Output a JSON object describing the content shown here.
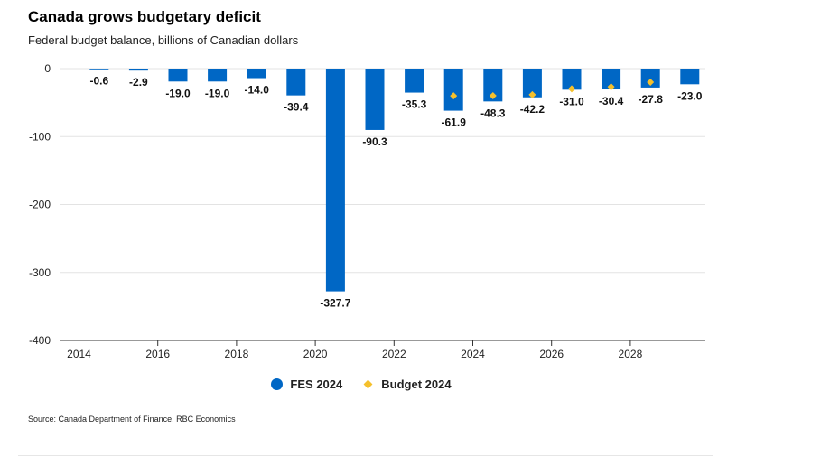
{
  "chart_data": {
    "type": "bar",
    "title": "Canada grows budgetary deficit",
    "subtitle": "Federal budget balance, billions of Canadian dollars",
    "xlabel": "",
    "ylabel": "",
    "ylim": [
      -400,
      0
    ],
    "yticks": [
      0,
      -100,
      -200,
      -300,
      -400
    ],
    "ytick_labels": [
      "0",
      "-100",
      "-200",
      "-300",
      "-400"
    ],
    "x": [
      2014,
      2015,
      2016,
      2017,
      2018,
      2019,
      2020,
      2021,
      2022,
      2023,
      2024,
      2025,
      2026,
      2027,
      2028,
      2029
    ],
    "xticks": [
      2014,
      2016,
      2018,
      2020,
      2022,
      2024,
      2026,
      2028
    ],
    "xtick_labels": [
      "2014",
      "2016",
      "2018",
      "2020",
      "2022",
      "2024",
      "2026",
      "2028"
    ],
    "grid": true,
    "legend_position": "bottom-center",
    "series": [
      {
        "name": "FES 2024",
        "type": "bar",
        "color": "#0067c5",
        "values": [
          -0.6,
          -2.9,
          -19.0,
          -19.0,
          -14.0,
          -39.4,
          -327.7,
          -90.3,
          -35.3,
          -61.9,
          -48.3,
          -42.2,
          -31.0,
          -30.4,
          -27.8,
          -23.0
        ],
        "labels": [
          "-0.6",
          "-2.9",
          "-19.0",
          "-19.0",
          "-14.0",
          "-39.4",
          "-327.7",
          "-90.3",
          "-35.3",
          "-61.9",
          "-48.3",
          "-42.2",
          "-31.0",
          "-30.4",
          "-27.8",
          "-23.0"
        ]
      },
      {
        "name": "Budget 2024",
        "type": "scatter",
        "marker": "diamond",
        "color": "#f5c02c",
        "values": [
          null,
          null,
          null,
          null,
          null,
          null,
          null,
          null,
          null,
          -40.0,
          -39.8,
          -38.4,
          -29.8,
          -26.8,
          -20.0,
          null
        ]
      }
    ],
    "source": "Source: Canada Department of Finance, RBC Economics"
  }
}
